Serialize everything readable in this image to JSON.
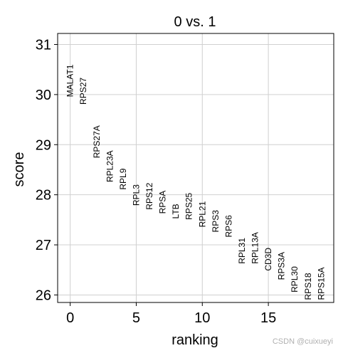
{
  "chart_data": {
    "type": "scatter",
    "title": "0 vs. 1",
    "xlabel": "ranking",
    "ylabel": "score",
    "xlim": [
      -0.95,
      19.95
    ],
    "ylim": [
      25.85,
      31.22
    ],
    "xticks": [
      0,
      5,
      10,
      15
    ],
    "yticks": [
      26,
      27,
      28,
      29,
      30,
      31
    ],
    "grid": true,
    "points": [
      {
        "rank": 0,
        "gene": "MALAT1",
        "score": 29.95
      },
      {
        "rank": 1,
        "gene": "RPS27",
        "score": 29.8
      },
      {
        "rank": 2,
        "gene": "RPS27A",
        "score": 28.73
      },
      {
        "rank": 3,
        "gene": "RPL23A",
        "score": 28.25
      },
      {
        "rank": 4,
        "gene": "RPL9",
        "score": 28.1
      },
      {
        "rank": 5,
        "gene": "RPL3",
        "score": 27.78
      },
      {
        "rank": 6,
        "gene": "RPS12",
        "score": 27.7
      },
      {
        "rank": 7,
        "gene": "RPSA",
        "score": 27.62
      },
      {
        "rank": 8,
        "gene": "LTB",
        "score": 27.52
      },
      {
        "rank": 9,
        "gene": "RPS25",
        "score": 27.5
      },
      {
        "rank": 10,
        "gene": "RPL21",
        "score": 27.35
      },
      {
        "rank": 11,
        "gene": "RPS3",
        "score": 27.25
      },
      {
        "rank": 12,
        "gene": "RPS6",
        "score": 27.15
      },
      {
        "rank": 13,
        "gene": "RPL31",
        "score": 26.62
      },
      {
        "rank": 14,
        "gene": "RPL13A",
        "score": 26.62
      },
      {
        "rank": 15,
        "gene": "CD3D",
        "score": 26.48
      },
      {
        "rank": 16,
        "gene": "RPS3A",
        "score": 26.3
      },
      {
        "rank": 17,
        "gene": "RPL30",
        "score": 26.05
      },
      {
        "rank": 18,
        "gene": "RPS18",
        "score": 25.9
      },
      {
        "rank": 19,
        "gene": "RPS15A",
        "score": 25.9
      }
    ]
  },
  "watermark": "CSDN @cuixueyi"
}
